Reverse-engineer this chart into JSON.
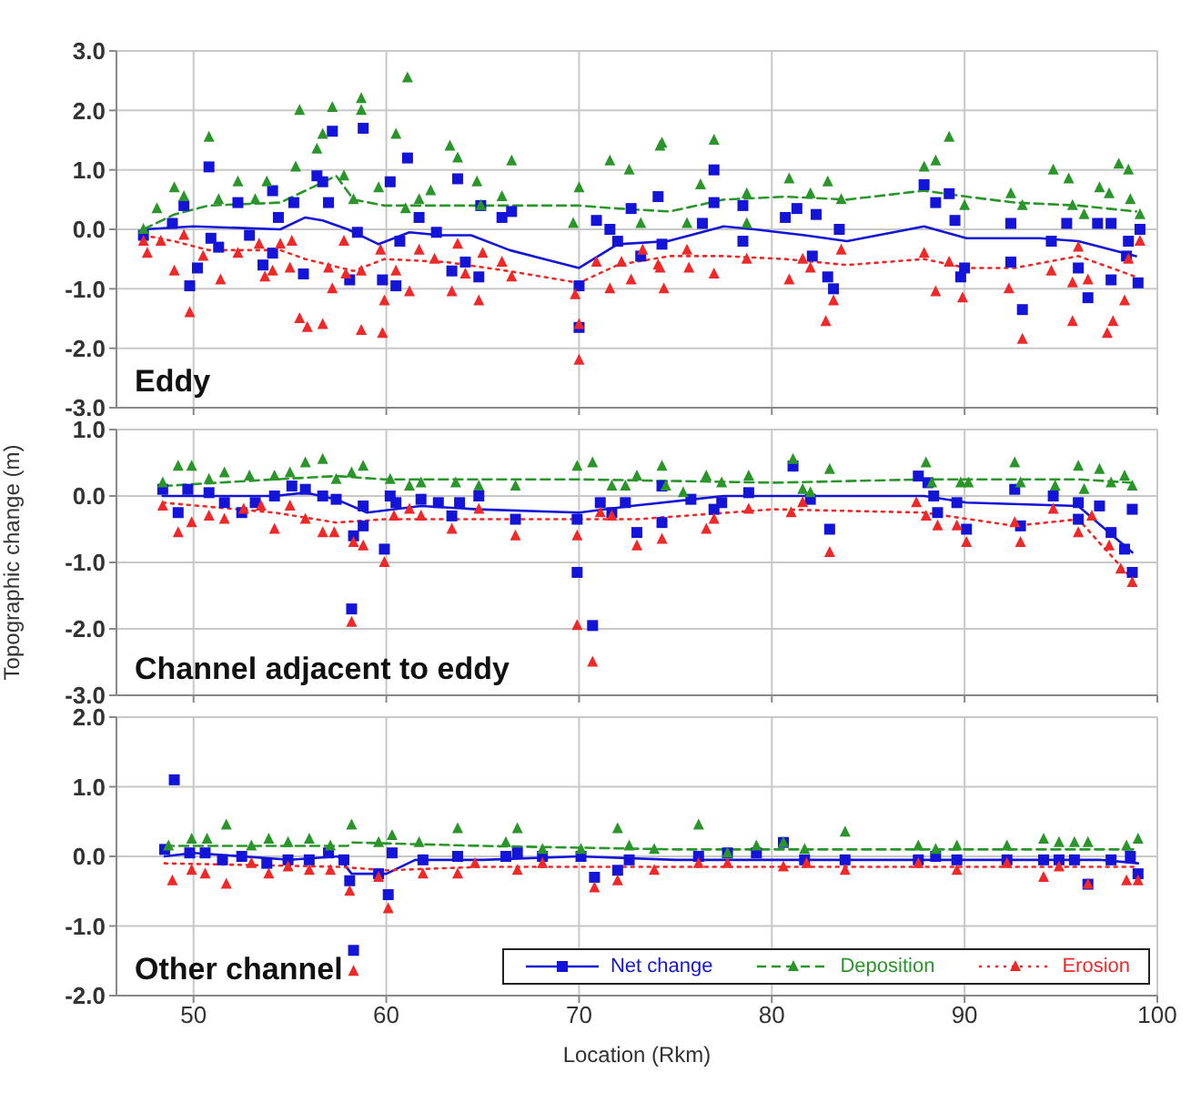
{
  "chart_data": [
    {
      "type": "scatter",
      "title": "Eddy",
      "xlim": [
        46,
        100
      ],
      "xticks": [
        50,
        60,
        70,
        80,
        90,
        100
      ],
      "ylim": [
        -3,
        3
      ],
      "yticks": [
        {
          "value": -3,
          "label": "-3.0"
        },
        {
          "value": -2,
          "label": "-2.0"
        },
        {
          "value": -1,
          "label": "-1.0"
        },
        {
          "value": 0,
          "label": "0.0"
        },
        {
          "value": 1,
          "label": "1.0"
        },
        {
          "value": 2,
          "label": "2.0"
        },
        {
          "value": 3,
          "label": "3.0"
        }
      ],
      "grid": true,
      "legend": false,
      "tick_labels": "y",
      "series": [
        {
          "type": "scatter",
          "marker": "square",
          "color": "#1414d8",
          "x": [
            47.4,
            48.9,
            49.5,
            50.8,
            50.2,
            49.8,
            50.9,
            51.3,
            52.3,
            52.9,
            53.6,
            54.1,
            54.1,
            54.4,
            55.2,
            55.7,
            56.4,
            56.7,
            57.2,
            57.0,
            58.1,
            58.8,
            58.5,
            59.8,
            60.5,
            60.2,
            61.1,
            60.7,
            61.7,
            62.6,
            63.4,
            63.7,
            64.1,
            64.8,
            64.9,
            66.0,
            66.5,
            70.0,
            70.0,
            70.9,
            71.6,
            72.0,
            72.7,
            73.2,
            74.1,
            74.3,
            77.0,
            77.0,
            76.4,
            78.5,
            78.5,
            80.7,
            81.3,
            82.3,
            82.1,
            82.9,
            83.2,
            83.5,
            87.9,
            88.5,
            89.2,
            89.5,
            89.8,
            90.0,
            92.4,
            92.4,
            93.0,
            94.5,
            95.3,
            95.9,
            96.4,
            96.9,
            97.6,
            97.6,
            98.4,
            98.5,
            99.0,
            99.1
          ],
          "values": [
            -0.1,
            0.1,
            0.4,
            1.05,
            -0.65,
            -0.95,
            -0.15,
            -0.3,
            0.45,
            -0.1,
            -0.6,
            -0.4,
            0.65,
            0.2,
            0.45,
            -0.75,
            0.9,
            0.8,
            1.65,
            0.45,
            -0.85,
            1.7,
            -0.05,
            -0.85,
            -0.95,
            0.8,
            1.2,
            -0.2,
            0.2,
            -0.05,
            -0.7,
            0.85,
            -0.55,
            -0.8,
            0.4,
            0.2,
            0.3,
            -0.95,
            -1.65,
            0.15,
            0.0,
            -0.2,
            0.35,
            -0.45,
            0.55,
            -0.25,
            1.0,
            0.45,
            0.1,
            0.4,
            -0.2,
            0.2,
            0.35,
            0.25,
            -0.45,
            -0.8,
            -1.0,
            0.0,
            0.75,
            0.45,
            0.6,
            0.15,
            -0.8,
            -0.65,
            0.1,
            -0.55,
            -1.35,
            -0.2,
            0.1,
            -0.65,
            -1.15,
            0.1,
            0.1,
            -0.85,
            -0.45,
            -0.2,
            -0.9,
            0.0
          ]
        },
        {
          "type": "scatter",
          "marker": "triangle",
          "color": "#2a962a",
          "x": [
            47.4,
            48.1,
            49.0,
            49.5,
            50.8,
            51.3,
            52.3,
            53.2,
            53.8,
            55.3,
            55.5,
            56.4,
            56.7,
            57.2,
            57.8,
            58.7,
            58.7,
            58.3,
            59.6,
            60.5,
            61.1,
            61.0,
            61.7,
            62.3,
            63.3,
            63.7,
            64.7,
            64.9,
            66.0,
            66.5,
            70.0,
            69.7,
            71.6,
            72.6,
            73.2,
            74.2,
            74.3,
            75.6,
            76.3,
            77.0,
            78.7,
            78.7,
            80.9,
            82.0,
            82.9,
            83.6,
            87.9,
            88.5,
            89.2,
            90.0,
            92.4,
            93.0,
            94.6,
            95.4,
            95.6,
            96.2,
            97.0,
            97.5,
            98.0,
            98.5,
            98.6,
            99.1
          ],
          "values": [
            0.0,
            0.35,
            0.7,
            0.55,
            1.55,
            0.5,
            0.8,
            0.5,
            0.8,
            1.05,
            2.0,
            1.35,
            1.6,
            2.05,
            0.9,
            2.2,
            2.0,
            0.5,
            0.7,
            1.6,
            2.55,
            0.35,
            0.5,
            0.65,
            1.4,
            1.2,
            0.8,
            0.4,
            0.55,
            1.15,
            0.7,
            0.1,
            1.15,
            1.0,
            0.1,
            1.4,
            1.45,
            0.1,
            0.75,
            1.5,
            0.6,
            0.1,
            0.85,
            0.6,
            0.8,
            0.5,
            1.05,
            1.15,
            1.55,
            0.4,
            0.6,
            0.4,
            1.0,
            0.85,
            0.4,
            0.25,
            0.7,
            0.6,
            1.1,
            1.0,
            0.5,
            0.25
          ]
        },
        {
          "type": "scatter",
          "marker": "triangle",
          "color": "#f02828",
          "x": [
            47.4,
            47.6,
            48.3,
            49.0,
            49.8,
            49.5,
            50.5,
            51.4,
            52.3,
            53.4,
            53.7,
            54.1,
            55.0,
            54.5,
            55.1,
            55.5,
            55.9,
            56.7,
            57.2,
            57.0,
            57.8,
            57.9,
            58.7,
            58.7,
            59.7,
            59.9,
            59.8,
            60.5,
            61.2,
            61.7,
            62.5,
            63.4,
            63.7,
            64.1,
            64.8,
            65.0,
            66.0,
            66.5,
            69.8,
            70.0,
            70.0,
            70.9,
            71.6,
            72.2,
            72.7,
            73.3,
            74.1,
            74.4,
            74.2,
            75.6,
            75.7,
            77.0,
            78.7,
            80.9,
            81.6,
            82.0,
            82.8,
            83.2,
            83.6,
            87.9,
            88.5,
            89.2,
            89.9,
            92.3,
            93.0,
            94.5,
            95.6,
            95.6,
            95.9,
            96.4,
            97.4,
            97.7,
            98.3,
            98.5,
            99.1
          ],
          "values": [
            -0.2,
            -0.4,
            -0.2,
            -0.7,
            -1.4,
            -0.1,
            -0.45,
            -0.85,
            -0.4,
            -0.25,
            -0.8,
            -0.7,
            -0.65,
            -0.25,
            -0.2,
            -1.5,
            -1.65,
            -1.6,
            -1.0,
            -0.65,
            -0.2,
            -0.75,
            -1.7,
            -0.7,
            -0.35,
            -1.2,
            -1.75,
            -0.7,
            -1.05,
            -0.35,
            -0.5,
            -1.05,
            -0.25,
            -0.75,
            -1.2,
            -0.4,
            -0.55,
            -0.8,
            -1.1,
            -1.6,
            -2.2,
            -0.55,
            -1.0,
            -0.55,
            -0.85,
            -0.35,
            -0.6,
            -1.0,
            -0.65,
            -0.35,
            -0.65,
            -0.75,
            -0.5,
            -0.85,
            -0.5,
            -0.65,
            -1.55,
            -1.2,
            -0.35,
            -0.4,
            -1.05,
            -0.55,
            -1.15,
            -1.0,
            -1.85,
            -0.7,
            -0.9,
            -1.55,
            -0.3,
            -0.85,
            -1.75,
            -1.55,
            -1.2,
            -0.5,
            -0.2
          ]
        },
        {
          "type": "line",
          "line_style": "solid",
          "marker": "none",
          "color": "#1414d8",
          "x": [
            47.4,
            50,
            54.5,
            55.8,
            56.7,
            58.0,
            59.6,
            61.2,
            62.8,
            64.4,
            66.4,
            68.2,
            70.0,
            72.0,
            74.6,
            77.5,
            79.1,
            81.7,
            83.9,
            87.9,
            90.1,
            92.3,
            93.9,
            95.9,
            98.9
          ],
          "values": [
            0.0,
            0.05,
            0.0,
            0.2,
            0.15,
            0.0,
            -0.25,
            -0.05,
            -0.1,
            -0.1,
            -0.35,
            -0.5,
            -0.65,
            -0.25,
            -0.2,
            0.05,
            0.0,
            -0.1,
            -0.2,
            0.05,
            -0.15,
            -0.15,
            -0.15,
            -0.2,
            -0.45
          ]
        },
        {
          "type": "line",
          "line_style": "dashed",
          "marker": "none",
          "color": "#2a962a",
          "x": [
            47.4,
            49.0,
            50.8,
            54.5,
            55.8,
            57.4,
            58.3,
            59.9,
            63.1,
            66.3,
            70.0,
            72.0,
            74.7,
            77.5,
            80.7,
            83.9,
            87.9,
            90.1,
            92.6,
            95.9,
            98.9
          ],
          "values": [
            0.0,
            0.25,
            0.4,
            0.45,
            0.65,
            0.9,
            0.5,
            0.4,
            0.4,
            0.4,
            0.4,
            0.35,
            0.3,
            0.5,
            0.55,
            0.5,
            0.65,
            0.55,
            0.45,
            0.4,
            0.3
          ]
        },
        {
          "type": "line",
          "line_style": "dotted",
          "marker": "none",
          "color": "#f02828",
          "x": [
            47.4,
            49.0,
            50.8,
            54.5,
            55.8,
            58.3,
            59.9,
            63.1,
            66.3,
            70.0,
            72.0,
            74.7,
            77.5,
            80.7,
            83.9,
            87.9,
            90.1,
            92.6,
            95.9,
            98.9
          ],
          "values": [
            -0.1,
            -0.2,
            -0.35,
            -0.35,
            -0.5,
            -0.7,
            -0.5,
            -0.55,
            -0.7,
            -0.9,
            -0.6,
            -0.45,
            -0.45,
            -0.5,
            -0.6,
            -0.5,
            -0.65,
            -0.65,
            -0.45,
            -0.8
          ]
        }
      ]
    },
    {
      "type": "scatter",
      "title": "Channel adjacent to eddy",
      "ylabel": "Topographic change (m)",
      "xlim": [
        46,
        100
      ],
      "xticks": [
        50,
        60,
        70,
        80,
        90,
        100
      ],
      "ylim": [
        -3,
        1
      ],
      "yticks": [
        {
          "value": -3,
          "label": "-3.0"
        },
        {
          "value": -2,
          "label": "-2.0"
        },
        {
          "value": -1,
          "label": "-1.0"
        },
        {
          "value": 0,
          "label": "0.0"
        },
        {
          "value": 1,
          "label": "1.0"
        }
      ],
      "grid": true,
      "legend": false,
      "tick_labels": "y",
      "series": [
        {
          "type": "scatter",
          "marker": "square",
          "color": "#1414d8",
          "x": [
            48.4,
            49.2,
            49.7,
            50.8,
            51.6,
            52.5,
            53.2,
            54.2,
            55.1,
            55.8,
            56.7,
            57.4,
            58.2,
            58.3,
            58.8,
            58.8,
            59.9,
            60.2,
            60.5,
            61.8,
            62.7,
            63.4,
            63.8,
            64.8,
            66.7,
            69.9,
            69.9,
            70.7,
            71.1,
            71.7,
            72.4,
            73.0,
            74.3,
            74.3,
            75.8,
            77.0,
            77.4,
            78.8,
            81.1,
            82.0,
            83.0,
            87.6,
            88.1,
            88.4,
            88.6,
            89.6,
            90.1,
            92.6,
            92.9,
            94.6,
            95.9,
            95.9,
            97.0,
            97.6,
            98.3,
            98.7,
            98.7
          ],
          "values": [
            0.1,
            -0.25,
            0.1,
            0.05,
            -0.1,
            -0.25,
            -0.1,
            0.0,
            0.15,
            0.1,
            0.0,
            -0.05,
            -1.7,
            -0.6,
            -0.45,
            -0.15,
            -0.8,
            0.0,
            -0.1,
            -0.05,
            -0.1,
            -0.3,
            -0.1,
            0.0,
            -0.35,
            -0.35,
            -1.15,
            -1.95,
            -0.1,
            -0.25,
            -0.1,
            -0.55,
            0.15,
            -0.4,
            -0.05,
            -0.2,
            -0.1,
            0.05,
            0.45,
            -0.05,
            -0.5,
            0.3,
            0.2,
            0.0,
            -0.25,
            -0.1,
            -0.5,
            0.1,
            -0.45,
            0.0,
            -0.1,
            -0.35,
            -0.15,
            -0.55,
            -0.8,
            -1.15,
            -0.2
          ]
        },
        {
          "type": "scatter",
          "marker": "triangle",
          "color": "#2a962a",
          "x": [
            48.4,
            49.2,
            49.9,
            50.8,
            51.6,
            52.9,
            54.2,
            55.0,
            55.8,
            56.7,
            57.4,
            58.2,
            58.8,
            60.2,
            61.2,
            61.8,
            63.6,
            64.8,
            66.7,
            69.9,
            70.7,
            71.7,
            72.4,
            73.0,
            74.3,
            74.5,
            75.4,
            76.6,
            77.4,
            78.8,
            81.1,
            81.6,
            82.0,
            83.0,
            88.0,
            88.3,
            89.8,
            90.2,
            92.6,
            92.9,
            94.7,
            95.9,
            96.2,
            97.0,
            97.6,
            98.3,
            98.7
          ],
          "values": [
            0.2,
            0.45,
            0.45,
            0.25,
            0.35,
            0.3,
            0.3,
            0.35,
            0.5,
            0.55,
            0.25,
            0.35,
            0.45,
            0.25,
            0.15,
            0.2,
            0.2,
            0.15,
            0.15,
            0.45,
            0.5,
            0.15,
            0.15,
            0.3,
            0.45,
            0.15,
            0.05,
            0.3,
            0.2,
            0.3,
            0.55,
            0.1,
            0.05,
            0.4,
            0.5,
            0.2,
            0.2,
            0.2,
            0.5,
            0.2,
            0.15,
            0.45,
            0.1,
            0.4,
            0.2,
            0.3,
            0.15
          ]
        },
        {
          "type": "scatter",
          "marker": "triangle",
          "color": "#f02828",
          "x": [
            48.4,
            49.2,
            49.9,
            50.8,
            51.6,
            52.6,
            53.5,
            54.2,
            55.0,
            55.8,
            56.7,
            57.3,
            58.2,
            58.3,
            58.8,
            59.9,
            60.4,
            61.2,
            61.8,
            63.4,
            64.8,
            66.7,
            69.9,
            69.9,
            70.7,
            71.1,
            71.7,
            73.0,
            74.3,
            76.6,
            77.0,
            78.8,
            81.0,
            81.6,
            83.0,
            87.5,
            88.0,
            88.6,
            89.6,
            90.1,
            92.6,
            92.9,
            94.6,
            95.9,
            96.6,
            97.5,
            98.1,
            98.7
          ],
          "values": [
            -0.15,
            -0.55,
            -0.4,
            -0.3,
            -0.35,
            -0.2,
            -0.15,
            -0.5,
            -0.15,
            -0.35,
            -0.55,
            -0.55,
            -1.9,
            -0.7,
            -0.75,
            -1.0,
            -0.3,
            -0.2,
            -0.3,
            -0.5,
            -0.2,
            -0.6,
            -0.6,
            -1.95,
            -2.5,
            -0.25,
            -0.3,
            -0.75,
            -0.65,
            -0.5,
            -0.35,
            -0.2,
            -0.25,
            -0.1,
            -0.85,
            -0.1,
            -0.3,
            -0.45,
            -0.45,
            -0.7,
            -0.4,
            -0.7,
            -0.2,
            -0.55,
            -0.3,
            -0.75,
            -1.1,
            -1.3
          ]
        },
        {
          "type": "line",
          "line_style": "solid",
          "marker": "none",
          "color": "#1414d8",
          "x": [
            48.4,
            50.8,
            54.2,
            55.8,
            57.4,
            59.0,
            61.8,
            64.7,
            70.0,
            72.7,
            77.5,
            80.1,
            87.9,
            90.1,
            95.9,
            98.7
          ],
          "values": [
            0.0,
            0.0,
            0.0,
            0.05,
            -0.05,
            -0.25,
            -0.15,
            -0.2,
            -0.25,
            -0.15,
            0.0,
            0.0,
            0.0,
            -0.1,
            -0.15,
            -0.85
          ]
        },
        {
          "type": "line",
          "line_style": "dashed",
          "marker": "none",
          "color": "#2a962a",
          "x": [
            48.4,
            54.2,
            57.4,
            59.9,
            70.0,
            80.1,
            87.9,
            95.9,
            98.7
          ],
          "values": [
            0.15,
            0.25,
            0.3,
            0.25,
            0.25,
            0.2,
            0.25,
            0.25,
            0.2
          ]
        },
        {
          "type": "line",
          "line_style": "dotted",
          "marker": "none",
          "color": "#f02828",
          "x": [
            48.4,
            54.2,
            57.4,
            59.9,
            70.0,
            73.0,
            80.1,
            87.9,
            92.6,
            95.9,
            98.7
          ],
          "values": [
            -0.1,
            -0.25,
            -0.4,
            -0.35,
            -0.35,
            -0.35,
            -0.2,
            -0.25,
            -0.45,
            -0.35,
            -1.25
          ]
        }
      ]
    },
    {
      "type": "scatter",
      "title": "Other channel",
      "xlabel": "Location (Rkm)",
      "xlim": [
        46,
        100
      ],
      "xticks": [
        50,
        60,
        70,
        80,
        90,
        100
      ],
      "ylim": [
        -2,
        2
      ],
      "yticks": [
        {
          "value": -2,
          "label": "-2.0"
        },
        {
          "value": -1,
          "label": "-1.0"
        },
        {
          "value": 0,
          "label": "0.0"
        },
        {
          "value": 1,
          "label": "1.0"
        },
        {
          "value": 2,
          "label": "2.0"
        }
      ],
      "grid": true,
      "legend": "bottom right",
      "series": [
        {
          "name": "Net change",
          "type": "scatter",
          "marker": "square",
          "color": "#1414d8",
          "x": [
            49.0,
            48.5,
            49.8,
            50.6,
            51.5,
            52.5,
            53.8,
            54.9,
            56.0,
            57.0,
            57.8,
            58.1,
            58.3,
            59.6,
            60.1,
            60.3,
            61.9,
            63.7,
            66.2,
            66.8,
            68.1,
            70.1,
            70.8,
            72.0,
            72.6,
            76.2,
            77.7,
            79.2,
            80.6,
            81.7,
            83.8,
            87.6,
            88.5,
            89.6,
            92.2,
            94.1,
            94.9,
            95.7,
            96.4,
            97.6,
            98.6,
            99.0
          ],
          "values": [
            1.1,
            0.1,
            0.05,
            0.05,
            -0.05,
            0.0,
            -0.1,
            -0.05,
            -0.05,
            0.05,
            -0.05,
            -0.35,
            -1.35,
            -0.25,
            -0.55,
            0.05,
            -0.05,
            0.0,
            0.0,
            0.05,
            0.0,
            0.0,
            -0.3,
            -0.2,
            -0.05,
            0.0,
            0.05,
            0.05,
            0.2,
            -0.05,
            -0.05,
            -0.05,
            0.0,
            -0.05,
            -0.05,
            -0.05,
            -0.05,
            -0.05,
            -0.4,
            -0.05,
            0.0,
            -0.25
          ]
        },
        {
          "name": "Deposition",
          "type": "scatter",
          "marker": "triangle",
          "color": "#2a962a",
          "x": [
            48.7,
            49.9,
            50.7,
            51.7,
            53.0,
            53.9,
            54.9,
            56.0,
            57.1,
            58.2,
            59.6,
            60.3,
            61.7,
            63.7,
            66.2,
            66.8,
            68.1,
            70.1,
            72.0,
            72.6,
            73.9,
            76.2,
            77.7,
            79.2,
            80.6,
            81.7,
            83.8,
            87.6,
            88.5,
            89.6,
            92.2,
            94.1,
            94.9,
            95.7,
            96.4,
            98.4,
            99.0
          ],
          "values": [
            0.15,
            0.25,
            0.25,
            0.45,
            0.15,
            0.25,
            0.2,
            0.25,
            0.15,
            0.45,
            0.2,
            0.3,
            0.2,
            0.4,
            0.2,
            0.4,
            0.1,
            0.1,
            0.4,
            0.15,
            0.1,
            0.45,
            0.05,
            0.15,
            0.2,
            0.1,
            0.35,
            0.15,
            0.1,
            0.15,
            0.15,
            0.25,
            0.2,
            0.2,
            0.2,
            0.15,
            0.25
          ]
        },
        {
          "name": "Erosion",
          "type": "scatter",
          "marker": "triangle",
          "color": "#f02828",
          "x": [
            48.9,
            49.9,
            50.6,
            51.7,
            53.0,
            53.9,
            54.9,
            56.0,
            57.1,
            58.1,
            58.3,
            59.6,
            60.1,
            61.9,
            63.7,
            64.6,
            66.8,
            68.1,
            70.8,
            72.0,
            73.9,
            76.2,
            77.7,
            80.6,
            81.8,
            83.8,
            87.6,
            89.6,
            92.2,
            94.1,
            94.9,
            96.4,
            98.4,
            99.0
          ],
          "values": [
            -0.35,
            -0.2,
            -0.25,
            -0.4,
            -0.1,
            -0.25,
            -0.15,
            -0.2,
            -0.2,
            -0.5,
            -1.65,
            -0.3,
            -0.75,
            -0.25,
            -0.25,
            -0.1,
            -0.2,
            -0.1,
            -0.45,
            -0.35,
            -0.2,
            -0.1,
            -0.1,
            -0.15,
            -0.1,
            -0.2,
            -0.1,
            -0.2,
            -0.1,
            -0.3,
            -0.15,
            -0.4,
            -0.35,
            -0.35
          ]
        },
        {
          "type": "line",
          "line_style": "solid",
          "marker": "none",
          "color": "#1414d8",
          "x": [
            48.5,
            50,
            55,
            57.5,
            58.2,
            60,
            61.5,
            65,
            70,
            75,
            80,
            90,
            97,
            99
          ],
          "values": [
            0.0,
            0.05,
            -0.05,
            0.0,
            -0.25,
            -0.25,
            -0.05,
            -0.05,
            0.0,
            -0.05,
            -0.05,
            -0.05,
            -0.05,
            -0.1
          ]
        },
        {
          "type": "line",
          "line_style": "dashed",
          "marker": "none",
          "color": "#2a962a",
          "x": [
            48.5,
            58,
            58.2,
            65,
            75,
            85,
            99
          ],
          "values": [
            0.15,
            0.15,
            0.2,
            0.15,
            0.1,
            0.1,
            0.1
          ]
        },
        {
          "type": "line",
          "line_style": "dotted",
          "marker": "none",
          "color": "#f02828",
          "x": [
            48.5,
            57.5,
            60,
            65,
            75,
            85,
            99
          ],
          "values": [
            -0.1,
            -0.15,
            -0.2,
            -0.15,
            -0.15,
            -0.15,
            -0.15
          ]
        }
      ]
    }
  ]
}
